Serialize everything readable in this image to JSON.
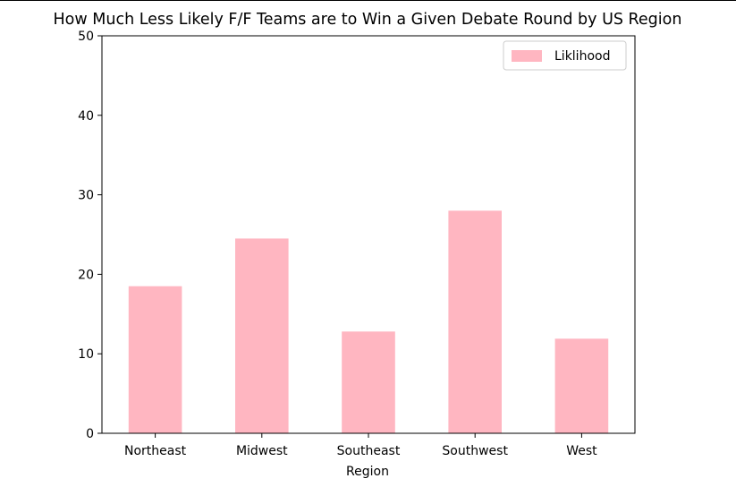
{
  "chart_data": {
    "type": "bar",
    "title": "How Much Less Likely F/F Teams are to Win a Given Debate Round by US Region",
    "xlabel": "Region",
    "ylabel": "",
    "categories": [
      "Northeast",
      "Midwest",
      "Southeast",
      "Southwest",
      "West"
    ],
    "series": [
      {
        "name": "Liklihood",
        "values": [
          18.5,
          24.5,
          12.8,
          28.0,
          11.9
        ]
      }
    ],
    "ylim": [
      0,
      50
    ],
    "yticks": [
      0,
      10,
      20,
      30,
      40,
      50
    ],
    "ytick_labels": [
      "0",
      "10",
      "20",
      "30",
      "40",
      "50"
    ],
    "grid": false,
    "legend_position": "top-right",
    "bar_color": "#ffb6c1"
  }
}
